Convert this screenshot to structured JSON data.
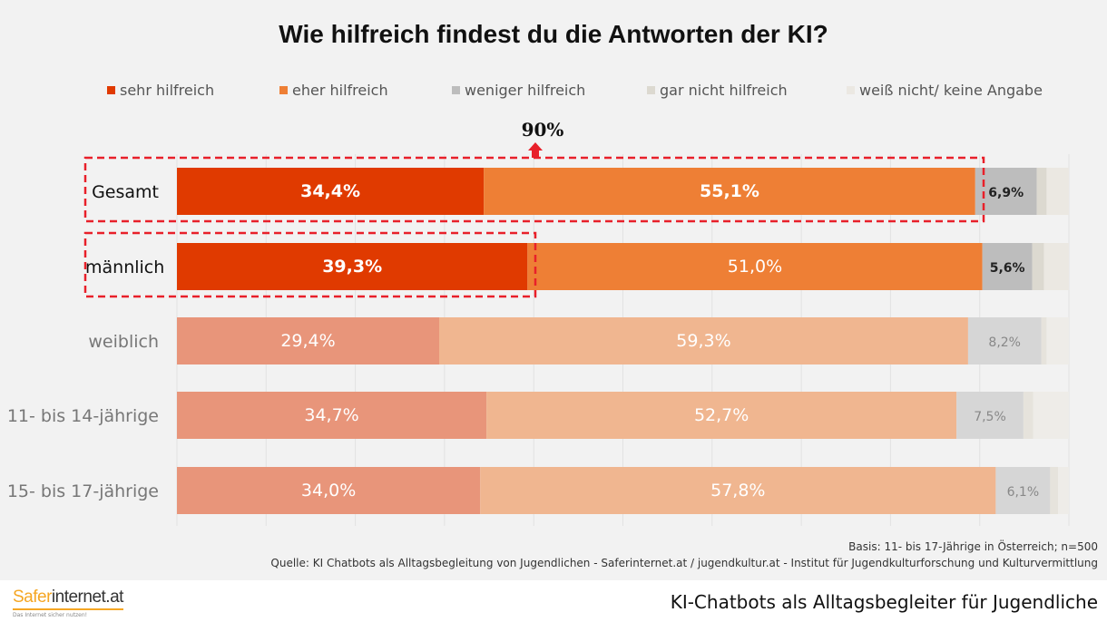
{
  "chart_data": {
    "type": "bar",
    "orientation": "horizontal",
    "stacked": true,
    "title": "Wie hilfreich findest du die Antworten der KI?",
    "categories": [
      "Gesamt",
      "männlich",
      "weiblich",
      "11- bis 14-jährige",
      "15- bis 17-jährige"
    ],
    "series": [
      {
        "name": "sehr hilfreich",
        "values": [
          34.4,
          39.3,
          29.4,
          34.7,
          34.0
        ],
        "color": "#e03a00",
        "faded_color": "#e8957a"
      },
      {
        "name": "eher hilfreich",
        "values": [
          55.1,
          51.0,
          59.3,
          52.7,
          57.8
        ],
        "color": "#ee7f35",
        "faded_color": "#f0b690"
      },
      {
        "name": "weniger hilfreich",
        "values": [
          6.9,
          5.6,
          8.2,
          7.5,
          6.1
        ],
        "color": "#bdbdbd",
        "faded_color": "#d6d6d6"
      },
      {
        "name": "gar nicht hilfreich",
        "values": [
          1.1,
          1.3,
          0.6,
          1.1,
          0.9
        ],
        "color": "#dcd9d0",
        "faded_color": "#e6e3dc"
      },
      {
        "name": "weiß nicht/ keine Angabe",
        "values": [
          2.5,
          2.8,
          2.5,
          4.0,
          1.2
        ],
        "color": "#ebe8e2",
        "faded_color": "#eeece8"
      }
    ],
    "data_labels": [
      [
        "34,4%",
        "55,1%",
        "6,9%"
      ],
      [
        "39,3%",
        "51,0%",
        "5,6%"
      ],
      [
        "29,4%",
        "59,3%",
        "8,2%"
      ],
      [
        "34,7%",
        "52,7%",
        "7,5%"
      ],
      [
        "34,0%",
        "57,8%",
        "6,1%"
      ]
    ],
    "highlighted_rows": [
      "Gesamt",
      "männlich"
    ],
    "annotation": "90%",
    "xlim": [
      0,
      100
    ],
    "grid": true,
    "legend_position": "top"
  },
  "basis": "Basis: 11- bis 17-Jährige in Österreich; n=500",
  "source": "Quelle: KI Chatbots als Alltagsbegleitung von Jugendlichen - Saferinternet.at / jugendkultur.at - Institut für Jugendkulturforschung und Kulturvermittlung",
  "logo": {
    "text_a": "Safer",
    "text_b": "internet.at",
    "tagline": "Das Internet sicher nutzen!"
  },
  "footer_title": "KI-Chatbots als Alltagsbegleiter für Jugendliche"
}
